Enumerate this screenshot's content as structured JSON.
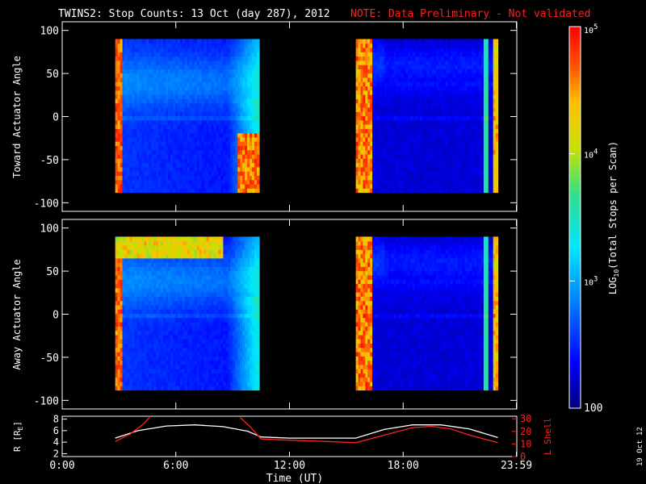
{
  "header": {
    "title": "TWINS2: Stop Counts: 13 Oct (day 287), 2012",
    "note": "NOTE: Data Preliminary - Not validated",
    "date_stamp": "19 Oct 12"
  },
  "colors": {
    "background": "#000000",
    "axes": "#ffffff",
    "note": "#ff2020",
    "r_line": "#ffffff",
    "l_shell_line": "#ff2020"
  },
  "chart_data": [
    {
      "type": "heatmap",
      "id": "toward",
      "ylabel": "Toward Actuator Angle",
      "ylim": [
        -110,
        110
      ],
      "yticks": [
        -100,
        -50,
        0,
        50,
        100
      ],
      "xlim": [
        0,
        24
      ],
      "data_windows_hours": [
        [
          2.8,
          10.4
        ],
        [
          15.5,
          23.0
        ]
      ],
      "angle_range": [
        -88,
        90
      ],
      "colorscale": "log10, 100 to 1e5, rainbow"
    },
    {
      "type": "heatmap",
      "id": "away",
      "ylabel": "Away Actuator Angle",
      "ylim": [
        -110,
        110
      ],
      "yticks": [
        -100,
        -50,
        0,
        50,
        100
      ],
      "xlim": [
        0,
        24
      ],
      "data_windows_hours": [
        [
          2.8,
          10.4
        ],
        [
          15.5,
          23.0
        ]
      ],
      "angle_range": [
        -88,
        90
      ],
      "colorscale": "log10, 100 to 1e5, rainbow"
    },
    {
      "type": "line",
      "id": "orbit",
      "ylabel_left": "R [R",
      "ylabel_left_sub": "E",
      "ylabel_left_end": "]",
      "ylabel_right": "L Shell",
      "yticks_left": [
        2,
        4,
        6,
        8
      ],
      "ylim_left": [
        1.5,
        8.5
      ],
      "yticks_right": [
        0,
        10,
        20,
        30
      ],
      "ylim_right": [
        0,
        32
      ],
      "xlim": [
        0,
        24
      ],
      "xtick_labels": [
        "0:00",
        "6:00",
        "12:00",
        "18:00",
        "23:59"
      ],
      "xtick_hours": [
        0,
        6,
        12,
        18,
        23.98
      ],
      "xlabel": "Time (UT)",
      "series": [
        {
          "axis": "left",
          "x": [
            2.8,
            4.0,
            5.5,
            7.0,
            8.5,
            9.8,
            10.5,
            12.0,
            14.0,
            15.5,
            17.0,
            18.5,
            20.0,
            21.5,
            23.0
          ],
          "y": [
            4.7,
            6.0,
            6.8,
            7.0,
            6.7,
            5.9,
            4.9,
            4.7,
            4.7,
            4.7,
            6.2,
            7.0,
            7.0,
            6.3,
            4.8
          ]
        },
        {
          "axis": "right",
          "x": [
            2.8,
            3.6,
            4.3,
            4.6,
            null,
            9.4,
            9.9,
            10.5,
            12.0,
            14.0,
            15.5,
            17.0,
            18.5,
            19.5,
            20.5,
            21.5,
            23.0
          ],
          "y": [
            12,
            18,
            26,
            31,
            null,
            31,
            24,
            14,
            13,
            12,
            11,
            17,
            23,
            24,
            22,
            17,
            11
          ]
        }
      ]
    }
  ],
  "colorbar": {
    "label_prefix": "LOG",
    "label_sub": "10",
    "label_suffix": "(Total Stops per Scan)",
    "tick_labels": [
      "100",
      "10",
      "10",
      "10"
    ],
    "tick_exponents": [
      "",
      "3",
      "4",
      "5"
    ],
    "log_range": [
      2,
      5
    ]
  }
}
